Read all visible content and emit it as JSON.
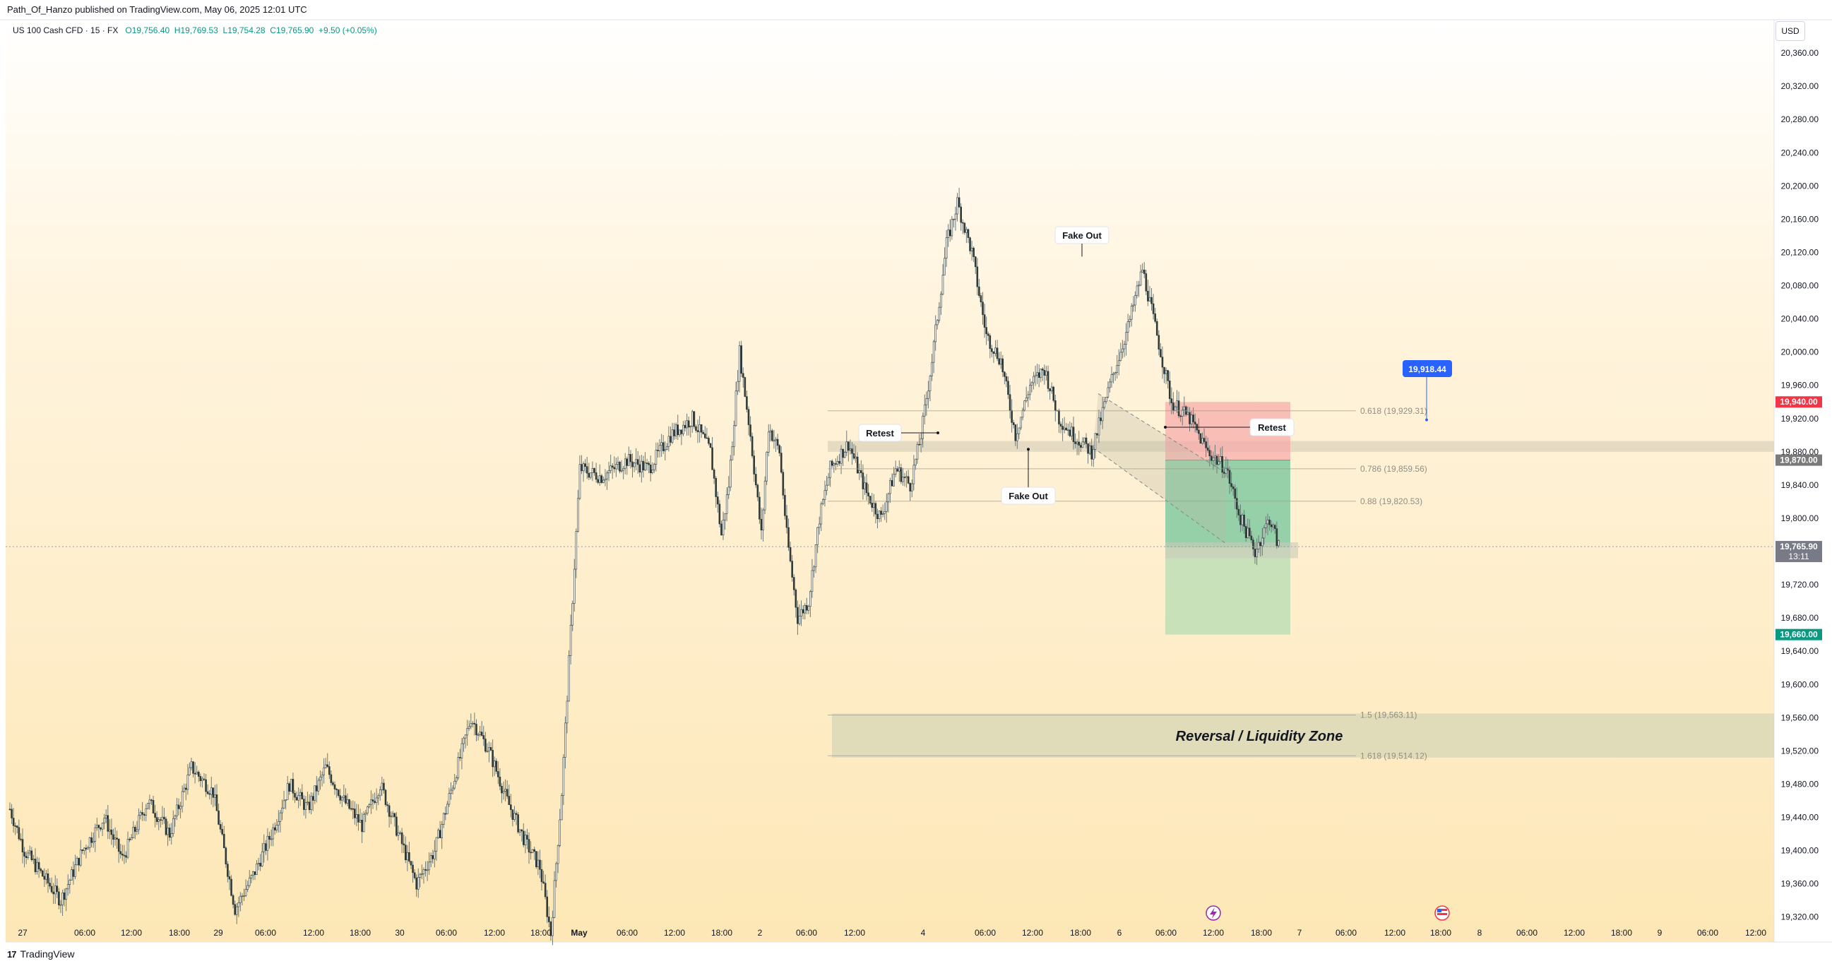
{
  "header": {
    "published_by": "Path_Of_Hanzo published on TradingView.com, May 06, 2025 12:01 UTC",
    "symbol": "US 100 Cash CFD · 15 · FX",
    "open": "O19,756.40",
    "high": "H19,769.53",
    "low": "L19,754.28",
    "close": "C19,765.90",
    "change": "+9.50 (+0.05%)"
  },
  "currency_button": "USD",
  "footer": {
    "brand": "TradingView",
    "brand_mark": "17"
  },
  "colors": {
    "up": "#089981",
    "down": "#f23645",
    "candle": "#2e3b3a",
    "wick": "#6d7a79",
    "blue_badge": "#2962ff"
  },
  "chart_data": {
    "type": "candlestick",
    "title": "US 100 Cash CFD · 15 · FX",
    "ylabel": "USD",
    "ylim": [
      19290,
      20400
    ],
    "y_ticks": [
      "20,360.00",
      "20,320.00",
      "20,280.00",
      "20,240.00",
      "20,200.00",
      "20,160.00",
      "20,120.00",
      "20,080.00",
      "20,040.00",
      "20,000.00",
      "19,960.00",
      "19,920.00",
      "19,880.00",
      "19,840.00",
      "19,800.00",
      "19,760.00",
      "19,720.00",
      "19,680.00",
      "19,640.00",
      "19,600.00",
      "19,560.00",
      "19,520.00",
      "19,480.00",
      "19,440.00",
      "19,400.00",
      "19,360.00",
      "19,320.00"
    ],
    "y_tick_values": [
      20360,
      20320,
      20280,
      20240,
      20200,
      20160,
      20120,
      20080,
      20040,
      20000,
      19960,
      19920,
      19880,
      19840,
      19800,
      19760,
      19720,
      19680,
      19640,
      19600,
      19560,
      19520,
      19480,
      19440,
      19400,
      19360,
      19320
    ],
    "x_ticks": [
      "27",
      "06:00",
      "12:00",
      "18:00",
      "29",
      "06:00",
      "12:00",
      "18:00",
      "30",
      "06:00",
      "12:00",
      "18:00",
      "May",
      "06:00",
      "12:00",
      "18:00",
      "2",
      "06:00",
      "12:00",
      "4",
      "06:00",
      "12:00",
      "18:00",
      "6",
      "06:00",
      "12:00",
      "18:00",
      "7",
      "06:00",
      "12:00",
      "18:00",
      "8",
      "06:00",
      "12:00",
      "18:00",
      "9",
      "06:00",
      "12:00"
    ],
    "bold_x_ticks": [
      "May"
    ],
    "price_path": [
      [
        0,
        19450
      ],
      [
        8,
        19400
      ],
      [
        18,
        19370
      ],
      [
        28,
        19340
      ],
      [
        40,
        19400
      ],
      [
        52,
        19440
      ],
      [
        62,
        19390
      ],
      [
        76,
        19460
      ],
      [
        88,
        19420
      ],
      [
        100,
        19500
      ],
      [
        112,
        19470
      ],
      [
        124,
        19330
      ],
      [
        134,
        19370
      ],
      [
        144,
        19420
      ],
      [
        154,
        19480
      ],
      [
        164,
        19450
      ],
      [
        174,
        19500
      ],
      [
        184,
        19460
      ],
      [
        194,
        19430
      ],
      [
        204,
        19480
      ],
      [
        214,
        19420
      ],
      [
        224,
        19360
      ],
      [
        234,
        19400
      ],
      [
        244,
        19480
      ],
      [
        254,
        19560
      ],
      [
        264,
        19520
      ],
      [
        274,
        19460
      ],
      [
        284,
        19410
      ],
      [
        292,
        19380
      ],
      [
        298,
        19300
      ],
      [
        304,
        19470
      ],
      [
        314,
        19860
      ],
      [
        326,
        19850
      ],
      [
        340,
        19870
      ],
      [
        352,
        19860
      ],
      [
        364,
        19900
      ],
      [
        376,
        19920
      ],
      [
        386,
        19880
      ],
      [
        392,
        19780
      ],
      [
        396,
        19840
      ],
      [
        402,
        20000
      ],
      [
        408,
        19900
      ],
      [
        414,
        19780
      ],
      [
        418,
        19910
      ],
      [
        424,
        19880
      ],
      [
        428,
        19780
      ],
      [
        434,
        19680
      ],
      [
        440,
        19700
      ],
      [
        446,
        19800
      ],
      [
        452,
        19860
      ],
      [
        462,
        19890
      ],
      [
        472,
        19830
      ],
      [
        480,
        19800
      ],
      [
        488,
        19860
      ],
      [
        496,
        19840
      ],
      [
        502,
        19900
      ],
      [
        508,
        19990
      ],
      [
        516,
        20130
      ],
      [
        522,
        20180
      ],
      [
        530,
        20120
      ],
      [
        538,
        20020
      ],
      [
        546,
        19990
      ],
      [
        554,
        19900
      ],
      [
        562,
        19960
      ],
      [
        570,
        19980
      ],
      [
        578,
        19920
      ],
      [
        586,
        19900
      ],
      [
        596,
        19880
      ],
      [
        606,
        19960
      ],
      [
        616,
        20030
      ],
      [
        624,
        20100
      ],
      [
        632,
        20020
      ],
      [
        640,
        19940
      ],
      [
        650,
        19920
      ],
      [
        660,
        19880
      ],
      [
        670,
        19860
      ],
      [
        678,
        19800
      ],
      [
        686,
        19760
      ],
      [
        694,
        19800
      ],
      [
        700,
        19760
      ]
    ],
    "current_price": "19,765.90",
    "countdown": "13:11",
    "stop_loss": "19,940.00",
    "entry": "19,870.00",
    "take_profit": "19,660.00",
    "badge_price": "19,918.44",
    "fib_levels": [
      {
        "label": "0.618 (19,929.31)",
        "value": 19929.31
      },
      {
        "label": "0.786 (19,859.56)",
        "value": 19859.56
      },
      {
        "label": "0.88 (19,820.53)",
        "value": 19820.53
      },
      {
        "label": "1.5 (19,563.11)",
        "value": 19563.11
      },
      {
        "label": "1.618 (19,514.12)",
        "value": 19514.12
      }
    ],
    "annotations": {
      "fake_out_top": "Fake Out",
      "fake_out_bottom": "Fake Out",
      "retest_left": "Retest",
      "retest_right": "Retest",
      "zone": "Reversal / Liquidity Zone"
    }
  }
}
